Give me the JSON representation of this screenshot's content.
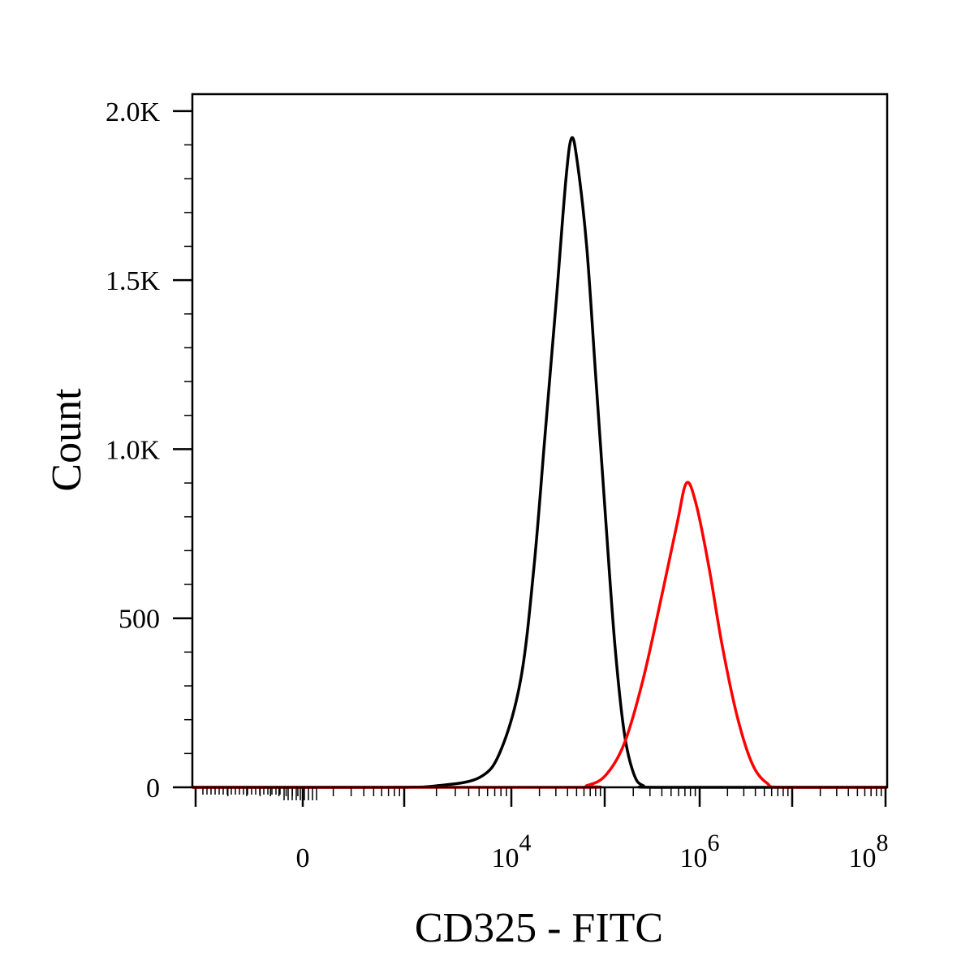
{
  "chart_data": {
    "type": "line",
    "xlabel": "CD325 - FITC",
    "ylabel": "Count",
    "x_scale": "biexponential",
    "ylim": [
      0,
      2050
    ],
    "y_ticks": [
      {
        "value": 0,
        "label": "0"
      },
      {
        "value": 500,
        "label": "500"
      },
      {
        "value": 1000,
        "label": "1.0K"
      },
      {
        "value": 1500,
        "label": "1.5K"
      },
      {
        "value": 2000,
        "label": "2.0K"
      }
    ],
    "x_ticks": [
      {
        "label": "0",
        "base": "",
        "exp": ""
      },
      {
        "label": "10^4",
        "base": "10",
        "exp": "4"
      },
      {
        "label": "10^6",
        "base": "10",
        "exp": "6"
      },
      {
        "label": "10^8",
        "base": "10",
        "exp": "8"
      }
    ],
    "grid": false,
    "legend": "none",
    "series": [
      {
        "color": "#000000",
        "points": [
          [
            -0.35,
            0
          ],
          [
            0.4,
            0
          ],
          [
            0.65,
            5
          ],
          [
            0.85,
            30
          ],
          [
            0.95,
            110
          ],
          [
            1.05,
            320
          ],
          [
            1.12,
            650
          ],
          [
            1.18,
            1050
          ],
          [
            1.24,
            1450
          ],
          [
            1.29,
            1800
          ],
          [
            1.32,
            1920
          ],
          [
            1.35,
            1850
          ],
          [
            1.4,
            1600
          ],
          [
            1.45,
            1200
          ],
          [
            1.5,
            800
          ],
          [
            1.55,
            420
          ],
          [
            1.6,
            160
          ],
          [
            1.65,
            40
          ],
          [
            1.7,
            5
          ],
          [
            1.8,
            0
          ],
          [
            3.0,
            0
          ]
        ]
      },
      {
        "color": "#ff0000",
        "points": [
          [
            -0.35,
            0
          ],
          [
            1.3,
            0
          ],
          [
            1.4,
            5
          ],
          [
            1.5,
            35
          ],
          [
            1.6,
            130
          ],
          [
            1.7,
            320
          ],
          [
            1.8,
            570
          ],
          [
            1.88,
            780
          ],
          [
            1.93,
            900
          ],
          [
            1.98,
            840
          ],
          [
            2.05,
            650
          ],
          [
            2.12,
            420
          ],
          [
            2.2,
            210
          ],
          [
            2.28,
            70
          ],
          [
            2.36,
            12
          ],
          [
            2.45,
            0
          ],
          [
            3.0,
            0
          ]
        ]
      }
    ]
  }
}
